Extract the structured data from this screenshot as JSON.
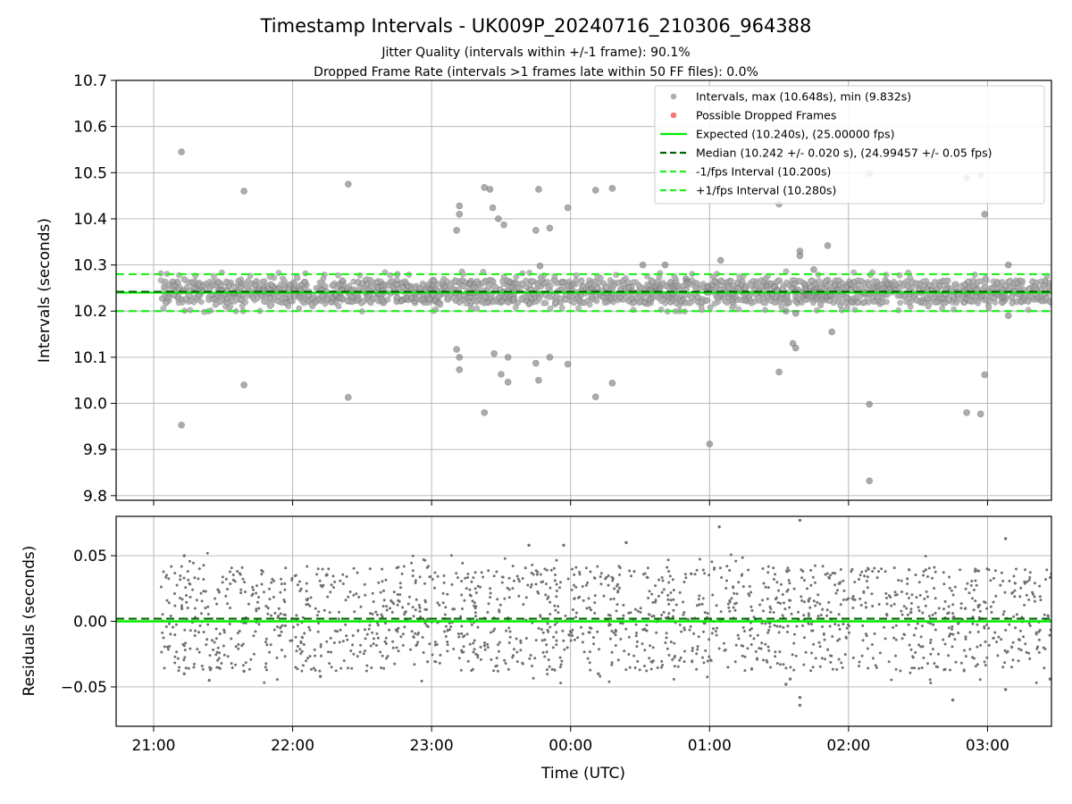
{
  "chart_data": [
    {
      "type": "scatter",
      "title": "Timestamp Intervals - UK009P_20240716_210306_964388",
      "subtitle_lines": [
        "Jitter Quality (intervals within +/-1 frame): 90.1%",
        "Dropped Frame Rate (intervals >1 frames late within 50 FF files): 0.0%"
      ],
      "ylabel": "Intervals (seconds)",
      "xlabel": "",
      "x_range_hours": [
        20.73,
        27.46
      ],
      "ylim": [
        9.79,
        10.7
      ],
      "yticks": [
        9.8,
        9.9,
        10.0,
        10.1,
        10.2,
        10.3,
        10.4,
        10.5,
        10.6,
        10.7
      ],
      "ytick_labels": [
        "9.8",
        "9.9",
        "10.0",
        "10.1",
        "10.2",
        "10.3",
        "10.4",
        "10.5",
        "10.6",
        "10.7"
      ],
      "grid": true,
      "legend_position": "top-right",
      "colors": {
        "points": "#808080",
        "dropped": "#f06060",
        "expected": "#00ee00",
        "median": "#006400",
        "bounds": "#22ee22"
      },
      "legend": [
        {
          "label": "Intervals, max (10.648s), min (9.832s)",
          "kind": "marker",
          "color": "#a0a0a0"
        },
        {
          "label": "Possible Dropped Frames",
          "kind": "marker",
          "color": "#f06060"
        },
        {
          "label": "Expected (10.240s), (25.00000 fps)",
          "kind": "solid",
          "color": "#00ee00"
        },
        {
          "label": "Median (10.242 +/- 0.020 s), (24.99457 +/- 0.05 fps)",
          "kind": "dashed",
          "color": "#006400"
        },
        {
          "label": "-1/fps Interval (10.200s)",
          "kind": "dashed",
          "color": "#22ee22"
        },
        {
          "label": "+1/fps Interval (10.280s)",
          "kind": "dashed",
          "color": "#22ee22"
        }
      ],
      "reference_lines": {
        "expected": 10.24,
        "median": 10.242,
        "lower": 10.2,
        "upper": 10.28
      },
      "core_band": {
        "time_range_hours": [
          21.05,
          27.46
        ],
        "center": 10.242,
        "spread": 0.02,
        "count": 2200
      },
      "series": [
        {
          "name": "Intervals, max (10.648s), min (9.832s)",
          "x_hours": [
            21.2,
            21.2,
            21.65,
            21.65,
            22.4,
            22.4,
            23.18,
            23.2,
            23.2,
            23.18,
            23.2,
            23.2,
            23.38,
            23.42,
            23.44,
            23.48,
            23.52,
            23.55,
            23.55,
            23.5,
            23.45,
            23.38,
            23.75,
            23.77,
            23.85,
            23.75,
            23.77,
            23.85,
            23.78,
            23.98,
            23.98,
            24.18,
            24.3,
            24.18,
            24.3,
            24.52,
            24.68,
            24.83,
            25.0,
            25.5,
            25.55,
            25.62,
            25.65,
            25.65,
            25.75,
            25.85,
            25.5,
            25.6,
            25.62,
            25.68,
            25.88,
            26.15,
            26.15,
            26.15,
            26.85,
            26.95,
            26.98,
            26.98,
            26.85,
            26.95,
            27.15,
            27.15,
            25.08
          ],
          "y": [
            10.545,
            9.953,
            10.46,
            10.04,
            10.475,
            10.013,
            10.375,
            10.428,
            10.41,
            10.117,
            10.1,
            10.073,
            10.468,
            10.464,
            10.424,
            10.4,
            10.387,
            10.1,
            10.046,
            10.063,
            10.108,
            9.98,
            10.375,
            10.464,
            10.38,
            10.087,
            10.05,
            10.1,
            10.298,
            10.424,
            10.085,
            10.462,
            10.466,
            10.014,
            10.044,
            10.3,
            10.3,
            10.27,
            9.912,
            10.432,
            10.2,
            10.195,
            10.33,
            10.32,
            10.29,
            10.342,
            10.068,
            10.13,
            10.12,
            10.235,
            10.155,
            10.498,
            9.998,
            9.832,
            10.489,
            10.495,
            10.41,
            10.062,
            9.98,
            9.977,
            10.3,
            10.19,
            10.31
          ]
        }
      ]
    },
    {
      "type": "scatter",
      "title": "",
      "ylabel": "Residuals (seconds)",
      "xlabel": "Time (UTC)",
      "x_range_hours": [
        20.73,
        27.46
      ],
      "ylim": [
        -0.08,
        0.08
      ],
      "yticks": [
        -0.05,
        0.0,
        0.05
      ],
      "ytick_labels": [
        "−0.05",
        "0.00",
        "0.05"
      ],
      "xticks_hours": [
        21,
        22,
        23,
        24,
        25,
        26,
        27
      ],
      "xtick_labels": [
        "21:00",
        "22:00",
        "23:00",
        "00:00",
        "01:00",
        "02:00",
        "03:00"
      ],
      "grid": true,
      "reference_lines": {
        "expected": 0.0,
        "median": 0.002
      },
      "core_band": {
        "time_range_hours": [
          21.05,
          27.46
        ],
        "center": 0.002,
        "spread": 0.02,
        "count": 1700
      },
      "series": [
        {
          "name": "",
          "x_hours": [
            21.22,
            21.22,
            21.4,
            21.65,
            22.2,
            23.7,
            23.95,
            24.4,
            24.2,
            25.07,
            25.55,
            25.65,
            25.65,
            25.65,
            25.58,
            26.75,
            27.13,
            27.13,
            27.45
          ],
          "y": [
            0.05,
            -0.04,
            -0.045,
            -0.038,
            -0.042,
            0.058,
            0.058,
            0.06,
            -0.04,
            0.072,
            -0.048,
            0.077,
            -0.058,
            -0.064,
            -0.044,
            -0.06,
            0.063,
            -0.052,
            -0.044
          ]
        }
      ]
    }
  ]
}
